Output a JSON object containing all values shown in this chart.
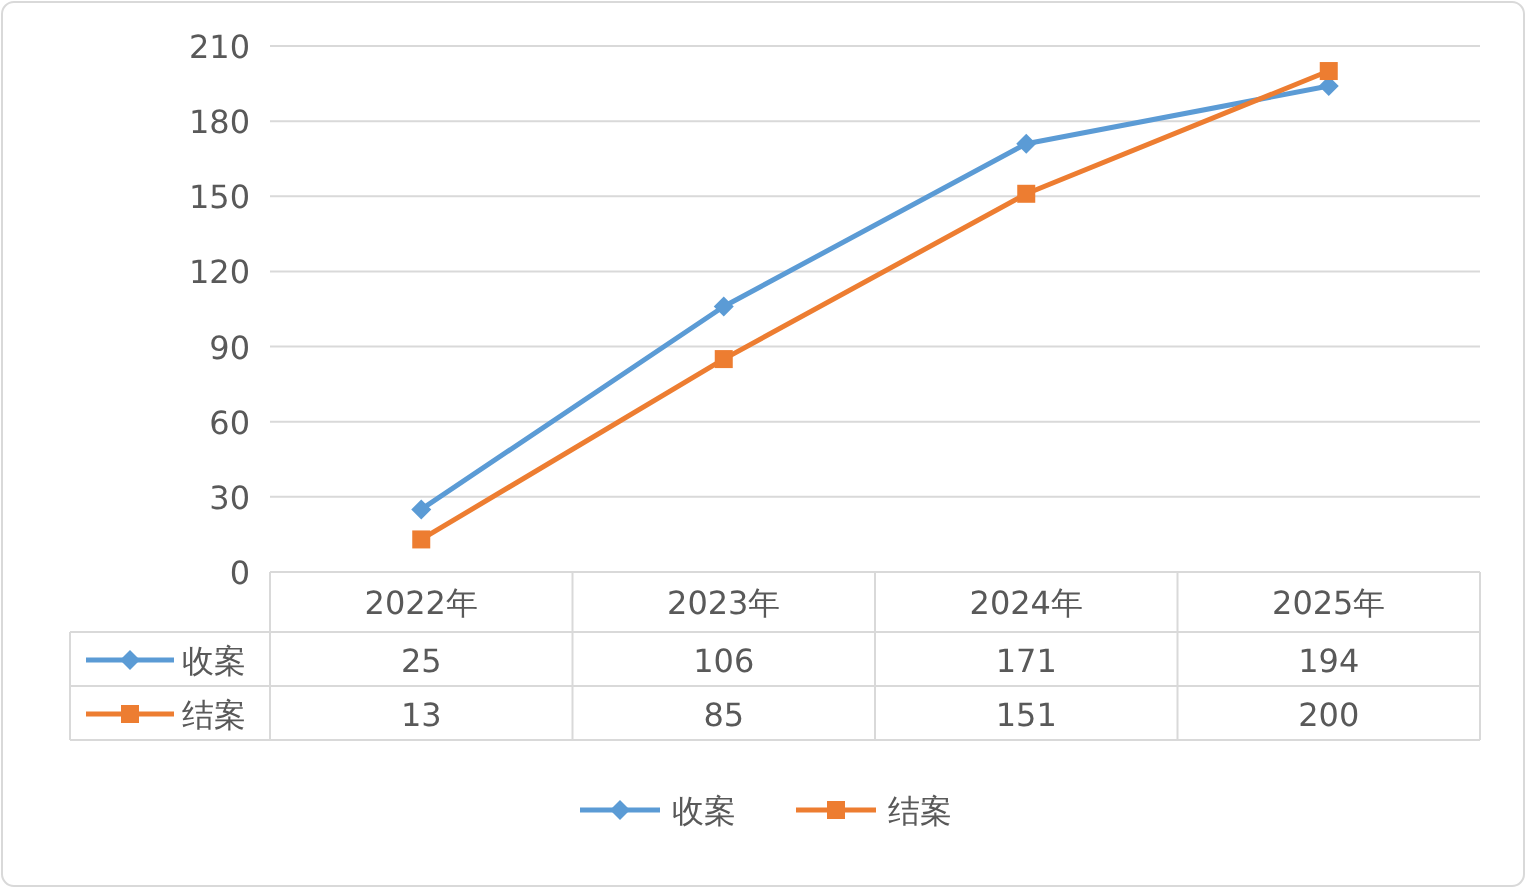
{
  "chart_data": {
    "type": "line",
    "categories": [
      "2022年",
      "2023年",
      "2024年",
      "2025年"
    ],
    "series": [
      {
        "name": "收案",
        "color": "#5b9bd5",
        "marker": "diamond",
        "values": [
          25,
          106,
          171,
          194
        ]
      },
      {
        "name": "结案",
        "color": "#ed7d31",
        "marker": "square",
        "values": [
          13,
          85,
          151,
          200
        ]
      }
    ],
    "ylim": [
      0,
      210
    ],
    "yticks": [
      0,
      30,
      60,
      90,
      120,
      150,
      180,
      210
    ],
    "grid": "y",
    "legend": "bottom",
    "data_labels": true,
    "line_style": "solid"
  }
}
